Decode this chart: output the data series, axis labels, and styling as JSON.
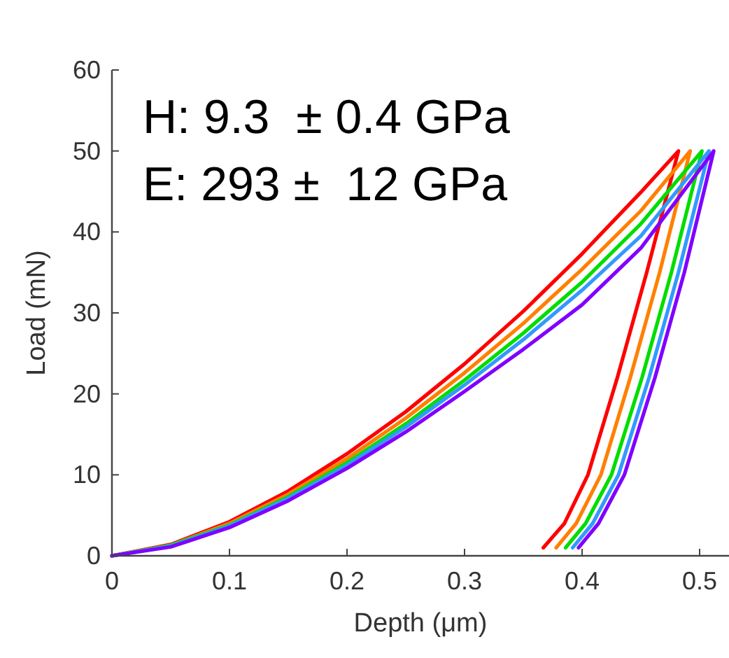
{
  "chart_data": {
    "type": "line",
    "xlabel": "Depth (μm)",
    "ylabel": "Load (mN)",
    "xlim": [
      0,
      0.525
    ],
    "xticks": [
      0,
      0.1,
      0.2,
      0.3,
      0.4,
      0.5
    ],
    "ylim": [
      0,
      60
    ],
    "yticks": [
      0,
      10,
      20,
      30,
      40,
      50,
      60
    ],
    "annotations": [
      "H: 9.3  ± 0.4 GPa",
      "E: 293 ±  12 GPa"
    ],
    "series": [
      {
        "color": "#ff0000",
        "x": [
          0,
          0.05,
          0.1,
          0.15,
          0.2,
          0.25,
          0.3,
          0.35,
          0.4,
          0.45,
          0.482,
          0.455,
          0.43,
          0.405,
          0.385,
          0.367
        ],
        "values": [
          0,
          1.4,
          4.2,
          8,
          12.6,
          17.8,
          23.7,
          30.2,
          37.3,
          44.9,
          50,
          35,
          22,
          10,
          4,
          1
        ]
      },
      {
        "color": "#ff8000",
        "x": [
          0,
          0.05,
          0.1,
          0.15,
          0.2,
          0.25,
          0.3,
          0.35,
          0.4,
          0.45,
          0.492,
          0.466,
          0.441,
          0.416,
          0.395,
          0.378
        ],
        "values": [
          0,
          1.3,
          4,
          7.6,
          12,
          17,
          22.6,
          28.7,
          35.4,
          42.6,
          50,
          35,
          22,
          10,
          4,
          1
        ]
      },
      {
        "color": "#00dd00",
        "x": [
          0,
          0.05,
          0.1,
          0.15,
          0.2,
          0.25,
          0.3,
          0.35,
          0.4,
          0.45,
          0.502,
          0.476,
          0.451,
          0.425,
          0.403,
          0.386
        ],
        "values": [
          0,
          1.3,
          3.8,
          7.3,
          11.5,
          16.3,
          21.7,
          27.5,
          33.8,
          41,
          50,
          35,
          22,
          10,
          4,
          1
        ]
      },
      {
        "color": "#3399ff",
        "x": [
          0,
          0.05,
          0.1,
          0.15,
          0.2,
          0.25,
          0.3,
          0.35,
          0.4,
          0.45,
          0.508,
          0.482,
          0.457,
          0.431,
          0.409,
          0.392
        ],
        "values": [
          0,
          1.2,
          3.7,
          7.1,
          11.2,
          15.9,
          21.1,
          26.7,
          32.8,
          39.5,
          50,
          35,
          22,
          10,
          4,
          1
        ]
      },
      {
        "color": "#8000ff",
        "x": [
          0,
          0.05,
          0.1,
          0.15,
          0.2,
          0.25,
          0.3,
          0.35,
          0.4,
          0.45,
          0.512,
          0.487,
          0.462,
          0.436,
          0.414,
          0.397
        ],
        "values": [
          0,
          1.1,
          3.5,
          6.8,
          10.8,
          15.3,
          20.3,
          25.5,
          31,
          38,
          50,
          35,
          22,
          10,
          4,
          1
        ]
      }
    ]
  }
}
